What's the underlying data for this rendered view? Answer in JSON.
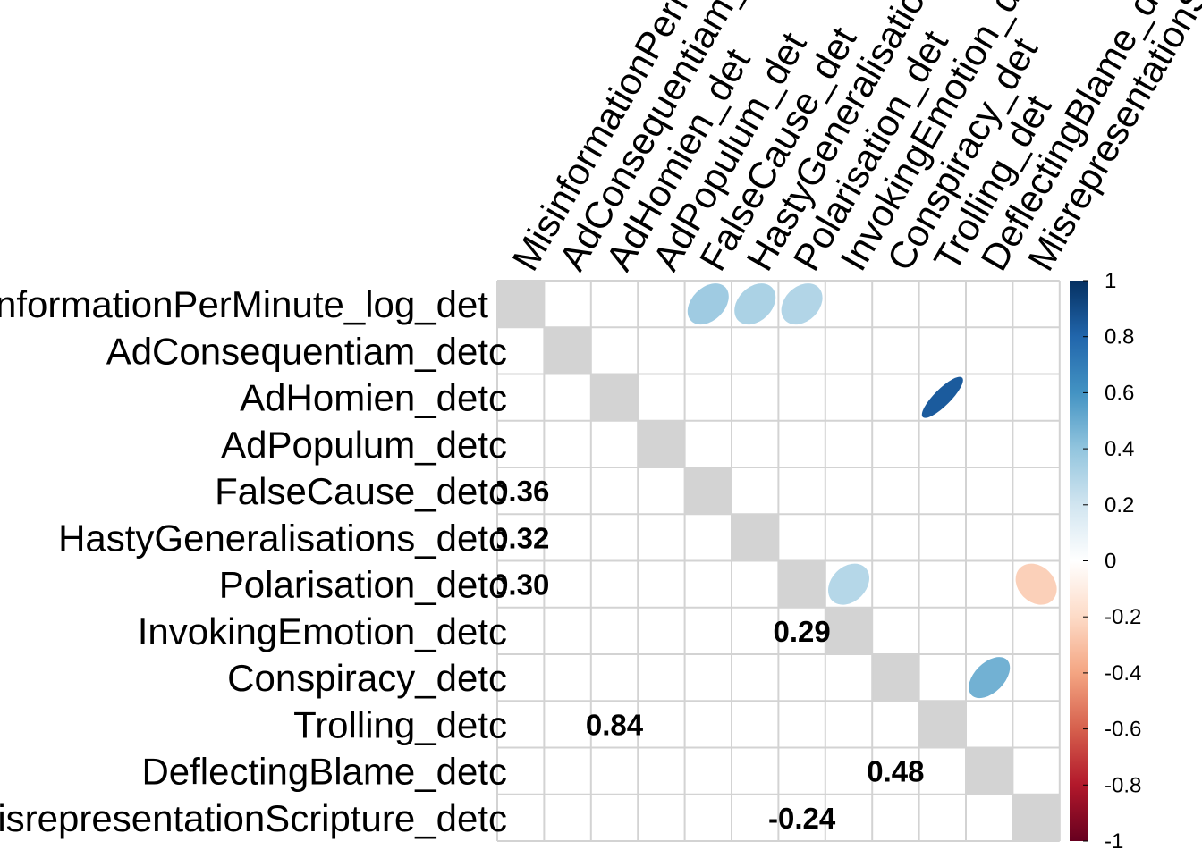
{
  "chart_data": {
    "type": "heatmap",
    "title": "",
    "method": "mixed: lower triangle numbers, upper triangle ellipses",
    "row_labels": [
      "MisinformationPerMinute_log_det",
      "AdConsequentiam_det",
      "AdHomien_det",
      "AdPopulum_det",
      "FalseCause_det",
      "HastyGeneralisations_det",
      "Polarisation_det",
      "InvokingEmotion_det",
      "Conspiracy_det",
      "Trolling_det",
      "DeflectingBlame_det",
      "MisrepresentationScripture_det"
    ],
    "col_labels": [
      "MisinformationPerMinute_log_det",
      "AdConsequentiam_det",
      "AdHomien_det",
      "AdPopulum_det",
      "FalseCause_det",
      "HastyGeneralisations_det",
      "Polarisation_det",
      "InvokingEmotion_det",
      "Conspiracy_det",
      "Trolling_det",
      "DeflectingBlame_det",
      "MisrepresentationScripture_det"
    ],
    "row_label_suffix": "c",
    "significant_pairs": [
      {
        "row": 4,
        "col": 0,
        "value": 0.36,
        "label": "0.36"
      },
      {
        "row": 5,
        "col": 0,
        "value": 0.32,
        "label": "0.32"
      },
      {
        "row": 6,
        "col": 0,
        "value": 0.3,
        "label": "0.30"
      },
      {
        "row": 7,
        "col": 6,
        "value": 0.29,
        "label": "0.29"
      },
      {
        "row": 9,
        "col": 2,
        "value": 0.84,
        "label": "0.84"
      },
      {
        "row": 10,
        "col": 8,
        "value": 0.48,
        "label": "0.48"
      },
      {
        "row": 11,
        "col": 6,
        "value": -0.24,
        "label": "-0.24"
      }
    ],
    "diagonal": "grey",
    "colorbar": {
      "range": [
        -1,
        1
      ],
      "ticks": [
        "1",
        "0.8",
        "0.6",
        "0.4",
        "0.2",
        "0",
        "-0.2",
        "-0.4",
        "-0.6",
        "-0.8",
        "-1"
      ],
      "palette": [
        "#67001F",
        "#B2182B",
        "#D6604D",
        "#F4A582",
        "#FDDBC7",
        "#FFFFFF",
        "#D1E5F0",
        "#92C5DE",
        "#4393C3",
        "#2166AC",
        "#053061"
      ]
    },
    "diagonal_color": "#D3D3D3",
    "grid_color": "#D3D3D3"
  }
}
